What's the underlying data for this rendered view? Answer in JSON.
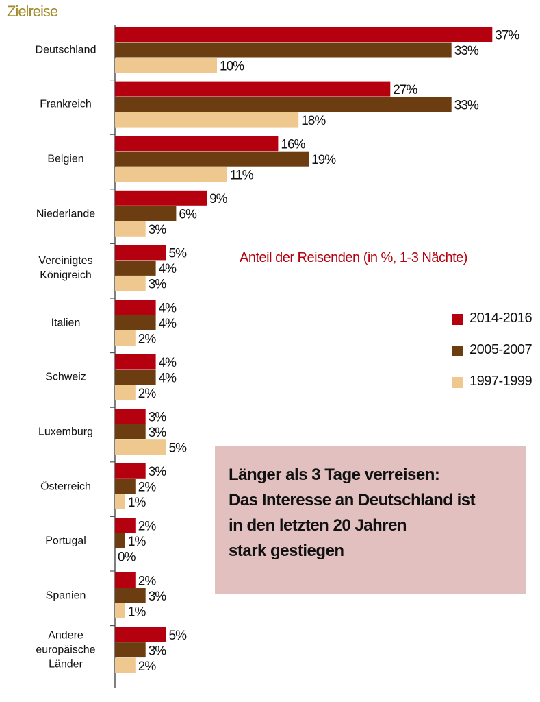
{
  "chart_data": {
    "type": "bar",
    "orientation": "horizontal",
    "title": "Zielreise",
    "subtitle": "Anteil der Reisenden (in %, 1-3 Nächte)",
    "categories": [
      "Deutschland",
      "Frankreich",
      "Belgien",
      "Niederlande",
      "Vereinigtes Königreich",
      "Italien",
      "Schweiz",
      "Luxemburg",
      "Österreich",
      "Portugal",
      "Spanien",
      "Andere europäische Länder"
    ],
    "series": [
      {
        "name": "2014-2016",
        "color": "#b5000f",
        "values": [
          37,
          27,
          16,
          9,
          5,
          4,
          4,
          3,
          3,
          2,
          2,
          5
        ],
        "value_labels": [
          "37%",
          "27%",
          "16%",
          "9%",
          "5%",
          "4%",
          "4%",
          "3%",
          "3%",
          "2%",
          "2%",
          "5%"
        ]
      },
      {
        "name": "2005-2007",
        "color": "#6b3d10",
        "values": [
          33,
          33,
          19,
          6,
          4,
          4,
          4,
          3,
          2,
          1,
          3,
          3
        ],
        "value_labels": [
          "33%",
          "33%",
          "19%",
          "6%",
          "4%",
          "4%",
          "4%",
          "3%",
          "2%",
          "1%",
          "3%",
          "3%"
        ]
      },
      {
        "name": "1997-1999",
        "color": "#eec88f",
        "values": [
          10,
          18,
          11,
          3,
          3,
          2,
          2,
          5,
          1,
          0,
          1,
          2
        ],
        "value_labels": [
          "10%",
          "18%",
          "11%",
          "3%",
          "3%",
          "2%",
          "2%",
          "5%",
          "1%",
          "0%",
          "1%",
          "2%"
        ]
      }
    ],
    "legend": "right",
    "annotation": [
      "Länger als 3 Tage verreisen:",
      "Das Interesse an Deutschland ist",
      "in den letzten 20 Jahren",
      "stark gestiegen"
    ]
  }
}
